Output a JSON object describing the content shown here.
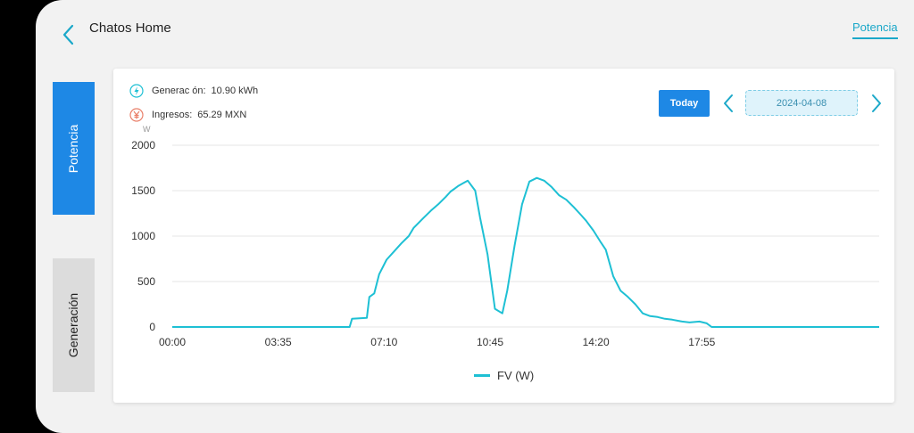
{
  "header": {
    "title": "Chatos Home",
    "top_tab": "Potencia",
    "back_icon": "chevron-left-icon"
  },
  "sidebar": {
    "tabs": [
      {
        "label": "Potencia",
        "active": true
      },
      {
        "label": "Generación",
        "active": false
      }
    ]
  },
  "stats": {
    "generation": {
      "label": "Generac ón:",
      "value": "10.90 kWh",
      "icon": "lightning-icon"
    },
    "income": {
      "label": "Ingresos:",
      "value": "65.29 MXN",
      "icon": "yen-icon"
    }
  },
  "controls": {
    "today_label": "Today",
    "date": "2024-04-08"
  },
  "colors": {
    "accent": "#1e88e5",
    "teal": "#1ba8c9",
    "line": "#1ec0d4",
    "income": "#e9806a"
  },
  "chart_data": {
    "type": "line",
    "ylabel": "W",
    "ylim": [
      0,
      2000
    ],
    "yticks": [
      "0",
      "500",
      "1000",
      "1500",
      "2000"
    ],
    "xlabels": [
      "00:00",
      "03:35",
      "07:10",
      "10:45",
      "14:20",
      "17:55"
    ],
    "xlim": [
      0,
      1435
    ],
    "legend": "bottom",
    "grid": true,
    "series": [
      {
        "name": "FV (W)",
        "x": [
          0,
          360,
          365,
          395,
          400,
          410,
          420,
          435,
          450,
          465,
          480,
          490,
          510,
          525,
          540,
          555,
          565,
          570,
          580,
          590,
          600,
          615,
          625,
          640,
          655,
          670,
          680,
          695,
          710,
          725,
          740,
          755,
          770,
          785,
          800,
          815,
          830,
          840,
          855,
          870,
          880,
          895,
          910,
          925,
          940,
          955,
          970,
          985,
          1000,
          1015,
          1035,
          1050,
          1070,
          1085,
          1095,
          1435
        ],
        "y": [
          0,
          0,
          90,
          100,
          330,
          370,
          580,
          740,
          830,
          920,
          1000,
          1090,
          1200,
          1280,
          1350,
          1430,
          1490,
          1510,
          1550,
          1580,
          1610,
          1500,
          1200,
          800,
          200,
          150,
          400,
          900,
          1350,
          1600,
          1640,
          1610,
          1540,
          1450,
          1400,
          1320,
          1230,
          1170,
          1060,
          930,
          850,
          560,
          400,
          330,
          250,
          150,
          120,
          110,
          90,
          80,
          60,
          50,
          60,
          40,
          0,
          0
        ]
      }
    ]
  }
}
